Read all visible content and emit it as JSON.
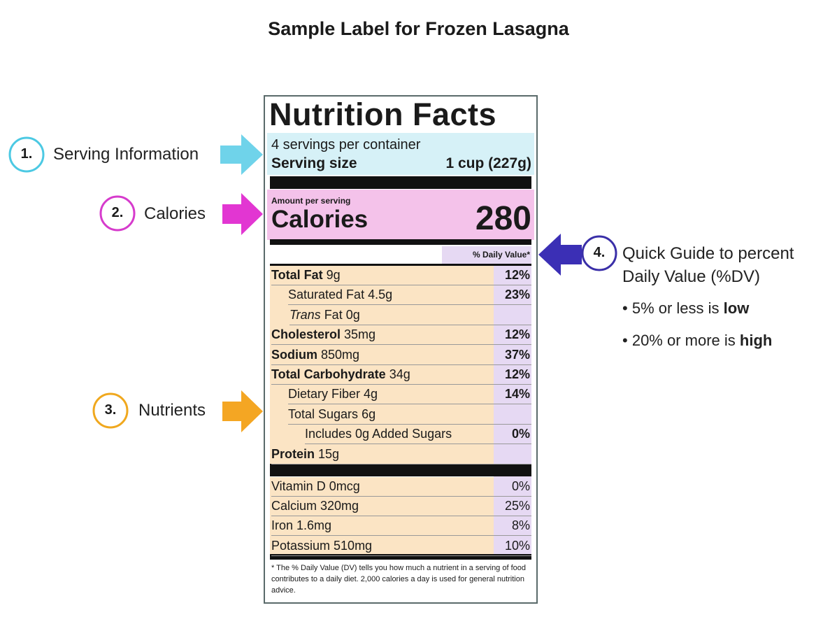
{
  "title": "Sample Label for Frozen Lasagna",
  "callouts": [
    {
      "number": "1.",
      "label": "Serving Information"
    },
    {
      "number": "2.",
      "label": "Calories"
    },
    {
      "number": "3.",
      "label": "Nutrients"
    },
    {
      "number": "4.",
      "label_lines": [
        "Quick Guide to percent",
        "Daily Value (%DV)"
      ],
      "bullets": [
        {
          "marker": "•",
          "text": "5% or less is",
          "emphasis": "low"
        },
        {
          "marker": "•",
          "text": "20% or more is",
          "emphasis": "high"
        }
      ]
    }
  ],
  "label": {
    "heading": "Nutrition Facts",
    "servings": "4 servings per container",
    "serving_size_label": "Serving size",
    "serving_size": "1 cup (227g)",
    "amount_per_serving": "Amount per serving",
    "calories_label": "Calories",
    "calories": "280",
    "dv_header": "% Daily Value*",
    "nutrients": [
      {
        "name": "Total Fat",
        "amount": "9g",
        "dv": "12%"
      },
      {
        "name": "Saturated Fat",
        "amount": "4.5g",
        "dv": "23%"
      },
      {
        "name": "Trans",
        "amount": "Fat 0g"
      },
      {
        "name": "Cholesterol",
        "amount": "35mg",
        "dv": "12%"
      },
      {
        "name": "Sodium",
        "amount": "850mg",
        "dv": "37%"
      },
      {
        "name": "Total Carbohydrate",
        "amount": "34g",
        "dv": "12%"
      },
      {
        "name": "Dietary Fiber",
        "amount": "4g",
        "dv": "14%"
      },
      {
        "name": "Total Sugars",
        "amount": "6g"
      },
      {
        "name": "Includes 0g Added Sugars",
        "dv": "0%"
      },
      {
        "name": "Protein",
        "amount": "15g"
      }
    ],
    "vitamins": [
      {
        "name": "Vitamin D 0mcg",
        "dv": "0%"
      },
      {
        "name": "Calcium 320mg",
        "dv": "25%"
      },
      {
        "name": "Iron 1.6mg",
        "dv": "8%"
      },
      {
        "name": "Potassium 510mg",
        "dv": "10%"
      }
    ],
    "footnote": "* The % Daily Value (DV) tells you how much a nutrient in a serving of food contributes to a daily diet. 2,000 calories a day is used for general nutrition advice."
  }
}
